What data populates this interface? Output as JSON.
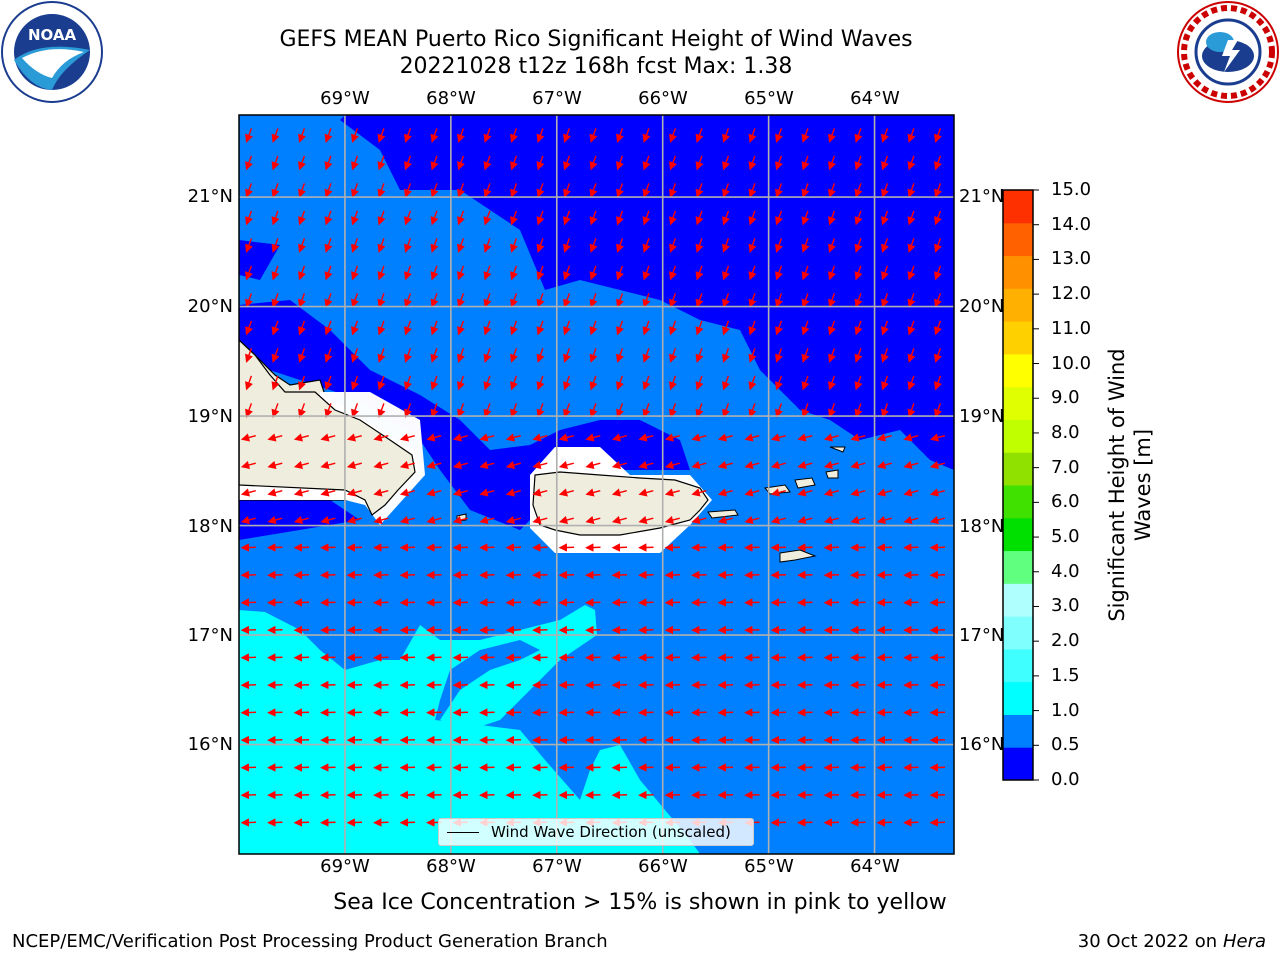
{
  "title": {
    "line1": "GEFS MEAN Puerto Rico Significant Height of Wind Waves",
    "line2": "20221028 t12z 168h fcst   Max: 1.38"
  },
  "logos": {
    "left": "noaa-logo",
    "right": "national-weather-service-logo"
  },
  "map": {
    "lon_labels": [
      "69°W",
      "68°W",
      "67°W",
      "66°W",
      "65°W",
      "64°W"
    ],
    "lat_labels": [
      "21°N",
      "20°N",
      "19°N",
      "18°N",
      "17°N",
      "16°N"
    ],
    "extent": {
      "lon_min": -70.0,
      "lon_max": -63.25,
      "lat_min": 15.0,
      "lat_max": 21.75
    },
    "arrow_color": "#ff0000",
    "land_color": "#efedde",
    "grid_color": "#b0b0b0"
  },
  "colorbar": {
    "title": "Significant Height of Wind Waves [m]",
    "ticks": [
      "15.0",
      "14.0",
      "13.0",
      "12.0",
      "11.0",
      "10.0",
      "9.0",
      "8.0",
      "7.0",
      "6.0",
      "5.0",
      "4.0",
      "3.0",
      "2.0",
      "1.5",
      "1.0",
      "0.5",
      "0.0"
    ],
    "levels": [
      0.0,
      0.5,
      1.0,
      1.5,
      2.0,
      2.5,
      3.0,
      4.0,
      5.0,
      6.0,
      7.0,
      8.0,
      9.0,
      10.0,
      11.0,
      12.0,
      13.0,
      14.0,
      15.0
    ],
    "colors": [
      "#0000ff",
      "#0080ff",
      "#00ffff",
      "#40ffff",
      "#80ffff",
      "#b0ffff",
      "#60ff80",
      "#00e000",
      "#40e000",
      "#90e000",
      "#c0ff00",
      "#e0ff00",
      "#ffff00",
      "#ffd000",
      "#ffb000",
      "#ff9000",
      "#ff6000",
      "#ff3000",
      "#ff0000"
    ]
  },
  "legend": {
    "label": "Wind Wave Direction (unscaled)"
  },
  "footer": {
    "ice_note": "Sea Ice Concentration > 15% is shown in pink to yellow",
    "left": "NCEP/EMC/Verification Post Processing Product Generation Branch",
    "right_date": "30 Oct 2022 on ",
    "right_host": "Hera"
  }
}
